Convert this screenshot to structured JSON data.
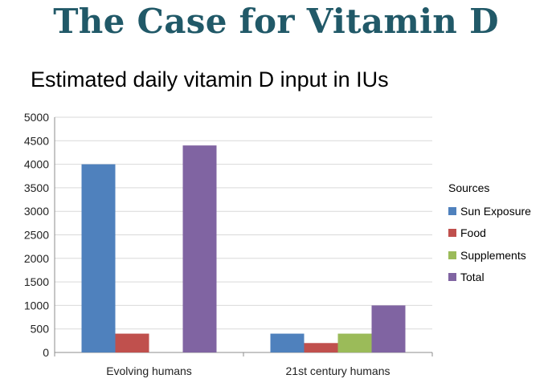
{
  "slide": {
    "title": "The Case for Vitamin D"
  },
  "chart_data": {
    "type": "bar",
    "title": "Estimated daily vitamin D input in IUs",
    "categories": [
      "Evolving humans",
      "21st century humans"
    ],
    "series": [
      {
        "name": "Sun Exposure",
        "color": "#4F81BD",
        "values": [
          4000,
          400
        ]
      },
      {
        "name": "Food",
        "color": "#C0504D",
        "values": [
          400,
          200
        ]
      },
      {
        "name": "Supplements",
        "color": "#9BBB59",
        "values": [
          0,
          400
        ]
      },
      {
        "name": "Total",
        "color": "#8064A2",
        "values": [
          4400,
          1000
        ]
      }
    ],
    "legend_title": "Sources",
    "legend_position": "right",
    "xlabel": "",
    "ylabel": "",
    "ylim": [
      0,
      5000
    ],
    "yticks": [
      0,
      500,
      1000,
      1500,
      2000,
      2500,
      3000,
      3500,
      4000,
      4500,
      5000
    ],
    "grid": true
  }
}
